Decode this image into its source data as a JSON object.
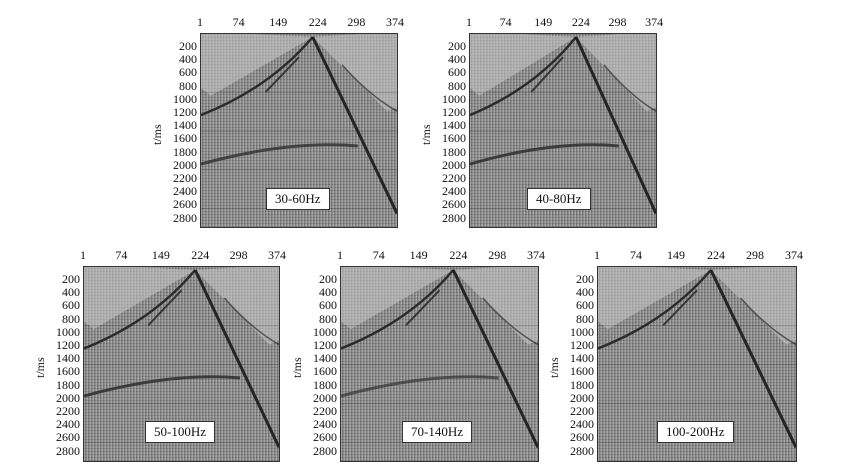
{
  "y_axis_title": "t/ms",
  "x_ticks": [
    "1",
    "74",
    "149",
    "224",
    "298",
    "374"
  ],
  "y_ticks": [
    "200",
    "400",
    "600",
    "800",
    "1000",
    "1200",
    "1400",
    "1600",
    "1800",
    "2000",
    "2200",
    "2400",
    "2600",
    "2800"
  ],
  "panels": [
    {
      "label": "30-60Hz"
    },
    {
      "label": "40-80Hz"
    },
    {
      "label": "50-100Hz"
    },
    {
      "label": "70-140Hz"
    },
    {
      "label": "100-200Hz"
    }
  ],
  "colors": {
    "trace_dark": "#1a1a1a",
    "trace_light": "#c8c8c8",
    "background": "#8a8a8a"
  }
}
